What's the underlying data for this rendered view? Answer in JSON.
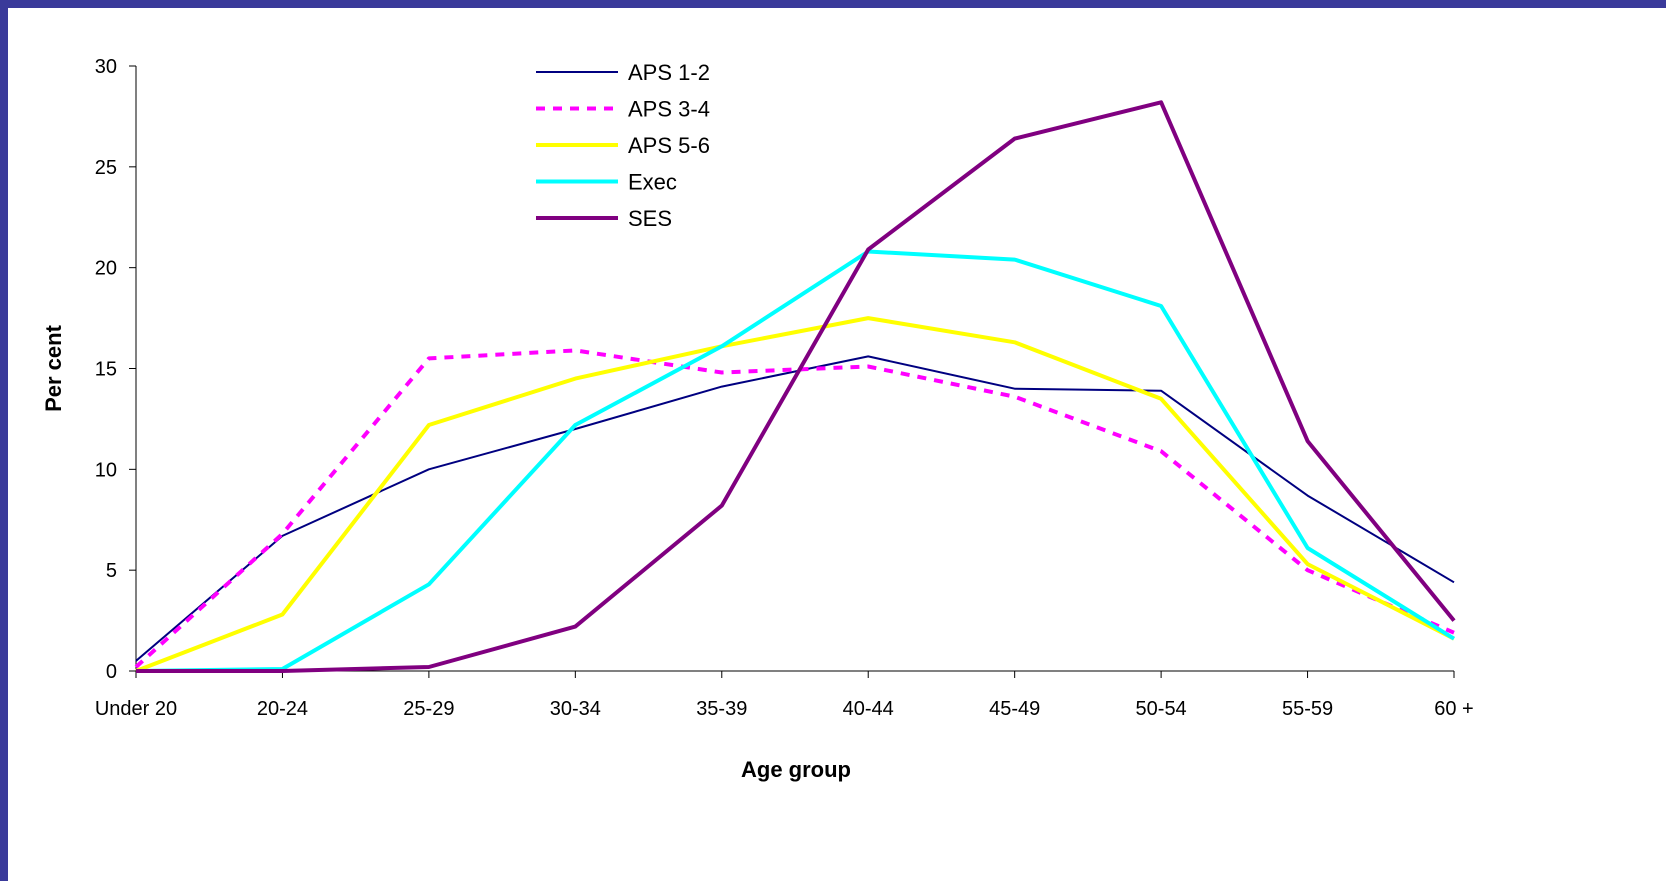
{
  "chart_data": {
    "type": "line",
    "title": "",
    "xlabel": "Age group",
    "ylabel": "Per cent",
    "ylim": [
      0,
      30
    ],
    "yticks": [
      0,
      5,
      10,
      15,
      20,
      25,
      30
    ],
    "grid": false,
    "legend_position": "top-center",
    "categories": [
      "Under 20",
      "20-24",
      "25-29",
      "30-34",
      "35-39",
      "40-44",
      "45-49",
      "50-54",
      "55-59",
      "60 +"
    ],
    "series": [
      {
        "name": "APS 1-2",
        "color": "#000080",
        "style": "solid",
        "width": 2,
        "values": [
          0.5,
          6.7,
          10.0,
          12.0,
          14.1,
          15.6,
          14.0,
          13.9,
          8.7,
          4.4
        ]
      },
      {
        "name": "APS 3-4",
        "color": "#ff00ff",
        "style": "dashed",
        "width": 4,
        "values": [
          0.2,
          6.8,
          15.5,
          15.9,
          14.8,
          15.1,
          13.6,
          10.9,
          5.0,
          1.9
        ]
      },
      {
        "name": "APS 5-6",
        "color": "#ffff00",
        "style": "solid",
        "width": 4,
        "values": [
          0.0,
          2.8,
          12.2,
          14.5,
          16.1,
          17.5,
          16.3,
          13.5,
          5.3,
          1.6
        ]
      },
      {
        "name": "Exec",
        "color": "#00ffff",
        "style": "solid",
        "width": 4,
        "values": [
          0.0,
          0.1,
          4.3,
          12.2,
          16.1,
          20.8,
          20.4,
          18.1,
          6.1,
          1.6
        ]
      },
      {
        "name": "SES",
        "color": "#800080",
        "style": "solid",
        "width": 4,
        "values": [
          0.0,
          0.0,
          0.2,
          2.2,
          8.2,
          20.9,
          26.4,
          28.2,
          11.4,
          2.5
        ]
      }
    ]
  }
}
